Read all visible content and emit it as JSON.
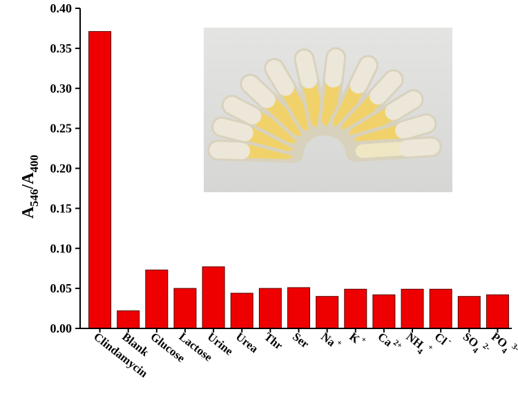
{
  "chart_data": {
    "type": "bar",
    "categories": [
      {
        "label": "Clindamycin"
      },
      {
        "label": "Blank"
      },
      {
        "label": "Glucose"
      },
      {
        "label": "Lactose"
      },
      {
        "label": "Urine"
      },
      {
        "label": "Urea"
      },
      {
        "label": "Thr"
      },
      {
        "label": "Ser"
      },
      {
        "label": "Na",
        "sup": "+"
      },
      {
        "label": "K",
        "sup": "+"
      },
      {
        "label": "Ca",
        "sup": "2+"
      },
      {
        "label": "NH",
        "sub": "4",
        "sup": "+"
      },
      {
        "label": "Cl",
        "sup": "-"
      },
      {
        "label": "SO",
        "sub": "4",
        "sup": "2-"
      },
      {
        "label": "PO",
        "sub": "4",
        "sup": "3-"
      }
    ],
    "values": [
      0.371,
      0.022,
      0.073,
      0.05,
      0.077,
      0.044,
      0.05,
      0.051,
      0.04,
      0.049,
      0.042,
      0.049,
      0.049,
      0.04,
      0.042
    ],
    "ylabel": {
      "main": "A",
      "sub1": "546",
      "slash": "/A",
      "sub2": "400"
    },
    "ylim": [
      0,
      0.4
    ],
    "yticks": [
      "0.00",
      "0.05",
      "0.10",
      "0.15",
      "0.20",
      "0.25",
      "0.30",
      "0.35",
      "0.40"
    ],
    "bar_color": "#ee0000",
    "grid": false,
    "inset_photo": "row of sample tubes with yellow solution"
  }
}
